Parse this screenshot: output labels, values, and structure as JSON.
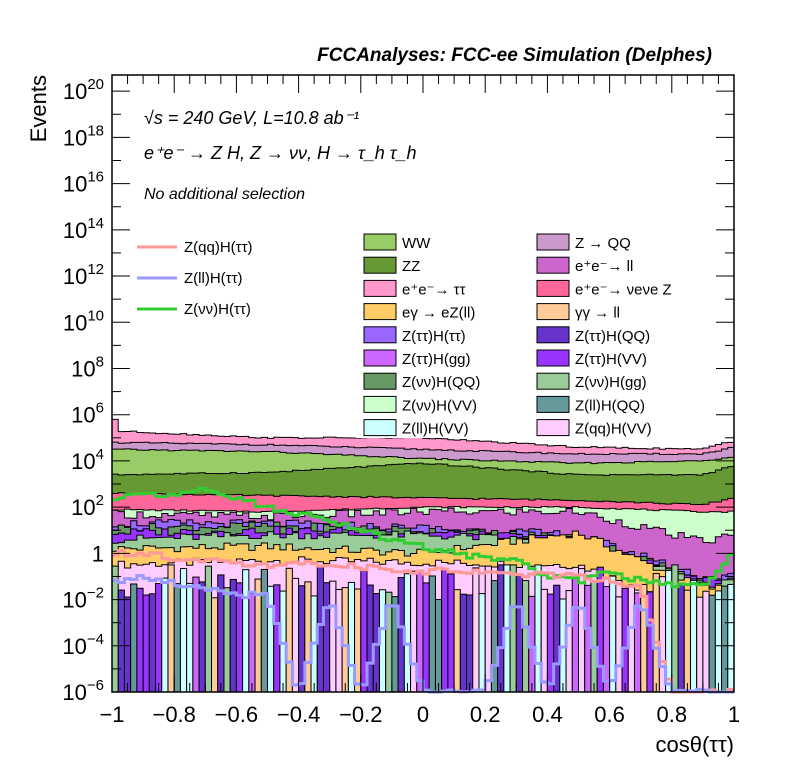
{
  "chart_data": {
    "type": "bar",
    "subtype": "stacked-histogram-with-overlay-lines",
    "title": "FCCAnalyses: FCC-ee Simulation (Delphes)",
    "annotations": [
      "√s = 240 GeV, L=10.8 ab⁻¹",
      "e⁺e⁻ → Z H, Z → νν, H → τ_h τ_h",
      "No additional selection"
    ],
    "xlabel": "cosθ(ττ)",
    "ylabel": "Events",
    "xlim": [
      -1,
      1
    ],
    "ylim_log10": [
      -6,
      20.7
    ],
    "yscale": "log",
    "x_ticks": [
      "−1",
      "−0.8",
      "−0.6",
      "−0.4",
      "−0.2",
      "0",
      "0.2",
      "0.4",
      "0.6",
      "0.8",
      "1"
    ],
    "x_tick_values": [
      -1,
      -0.8,
      -0.6,
      -0.4,
      -0.2,
      0,
      0.2,
      0.4,
      0.6,
      0.8,
      1
    ],
    "y_ticks": [
      {
        "base": "10",
        "exp": "20",
        "value": 20
      },
      {
        "base": "10",
        "exp": "18",
        "value": 18
      },
      {
        "base": "10",
        "exp": "16",
        "value": 16
      },
      {
        "base": "10",
        "exp": "14",
        "value": 14
      },
      {
        "base": "10",
        "exp": "12",
        "value": 12
      },
      {
        "base": "10",
        "exp": "10",
        "value": 10
      },
      {
        "base": "10",
        "exp": "8",
        "value": 8
      },
      {
        "base": "10",
        "exp": "6",
        "value": 6
      },
      {
        "base": "10",
        "exp": "4",
        "value": 4
      },
      {
        "base": "10",
        "exp": "2",
        "value": 2
      },
      {
        "base": "1",
        "exp": "",
        "value": 0
      },
      {
        "base": "10",
        "exp": "−2",
        "value": -2
      },
      {
        "base": "10",
        "exp": "−4",
        "value": -4
      },
      {
        "base": "10",
        "exp": "−6",
        "value": -6
      }
    ],
    "n_bins": 100,
    "stack_bands_log10_top": {
      "description": "approximate log10 of cumulative stack top at x = -1, -0.5, 0, 0.5, 0.9, 1 for each visible band (bottom-to-top order)",
      "x": [
        -1,
        -0.5,
        0,
        0.5,
        0.9,
        1
      ],
      "bands": [
        {
          "name": "Z(qq)H(VV)",
          "top": [
            -0.5,
            -0.3,
            -0.4,
            -0.5,
            -2.5,
            -2.5
          ]
        },
        {
          "name": "eγ → eZ(ll)",
          "top": [
            0.2,
            0.3,
            0.0,
            0.9,
            -1.5,
            -1.5
          ]
        },
        {
          "name": "Z(νν)H(gg)",
          "top": [
            0.6,
            0.8,
            0.8,
            0.5,
            -1.3,
            -1.3
          ]
        },
        {
          "name": "Z(ττ)H(VV)",
          "top": [
            0.9,
            1.0,
            0.9,
            0.6,
            -1.2,
            -1.2
          ]
        },
        {
          "name": "Z(νν)H(QQ)",
          "top": [
            1.1,
            1.2,
            1.0,
            0.7,
            -1.1,
            -1.1
          ]
        },
        {
          "name": "Z(ττ)H(ττ)",
          "top": [
            1.3,
            1.3,
            1.1,
            0.8,
            -1.0,
            -1.0
          ]
        },
        {
          "name": "e⁺e⁻ → ll",
          "top": [
            1.7,
            1.6,
            1.8,
            1.8,
            0.5,
            0.8
          ]
        },
        {
          "name": "Z(νν)H(VV)",
          "top": [
            1.9,
            1.8,
            2.0,
            2.0,
            1.8,
            1.8
          ]
        },
        {
          "name": "e⁺e⁻ → νeνe Z",
          "top": [
            2.6,
            2.5,
            2.4,
            2.3,
            2.1,
            2.4
          ]
        },
        {
          "name": "ZZ",
          "top": [
            3.4,
            3.5,
            3.9,
            3.4,
            3.4,
            3.8
          ]
        },
        {
          "name": "WW",
          "top": [
            4.5,
            4.4,
            4.1,
            3.9,
            4.0,
            4.2
          ]
        },
        {
          "name": "Z → QQ",
          "top": [
            4.8,
            4.7,
            4.5,
            4.3,
            4.3,
            4.6
          ]
        },
        {
          "name": "e⁺e⁻ → ττ",
          "top": [
            5.3,
            5.0,
            5.0,
            4.6,
            4.5,
            4.9
          ]
        }
      ]
    },
    "edge_spikes_log10": {
      "e⁺e⁻ → ττ at x=-1": 5.8,
      "e⁺e⁻ → ττ at x=1": 4.8
    },
    "overlay_lines_log10": {
      "x": [
        -1,
        -0.9,
        -0.8,
        -0.7,
        -0.6,
        -0.5,
        -0.4,
        -0.3,
        -0.2,
        -0.1,
        0,
        0.1,
        0.2,
        0.3,
        0.4,
        0.5,
        0.6,
        0.7,
        0.8,
        0.9,
        1
      ],
      "series": [
        {
          "name": "Z(νν)H(ττ)",
          "values": [
            2.4,
            2.5,
            2.6,
            2.8,
            2.4,
            2.0,
            1.7,
            1.4,
            1.0,
            0.6,
            0.3,
            0.0,
            -0.2,
            -0.3,
            -1.0,
            -1.2,
            -0.8,
            -1.2,
            -1.4,
            -1.4,
            0.0
          ]
        },
        {
          "name": "Z(qq)H(ττ)",
          "values": [
            0.0,
            0.0,
            -0.2,
            -0.3,
            -0.4,
            -0.5,
            -0.4,
            -0.5,
            -0.6,
            -0.7,
            -0.8,
            -0.7,
            -0.8,
            -0.9,
            -0.9,
            -1.0,
            -1.2,
            -1.5,
            -6,
            -6,
            -6
          ]
        },
        {
          "name": "Z(ll)H(ττ)",
          "values": [
            -1.2,
            -1.0,
            -1.3,
            -1.5,
            -1.8,
            -1.8,
            -6,
            -2.0,
            -6,
            -2.0,
            -6,
            -6,
            -6,
            -2.0,
            -6,
            -2.0,
            -6,
            -2.0,
            -6,
            -6,
            -6
          ]
        }
      ]
    },
    "legend": {
      "lines": [
        {
          "label": "Z(qq)H(ττ)",
          "color": "#ff9999"
        },
        {
          "label": "Z(ll)H(ττ)",
          "color": "#9999ff"
        },
        {
          "label": "Z(νν)H(ττ)",
          "color": "#33cc33"
        }
      ],
      "fills_col1": [
        {
          "label": "WW",
          "color": "#99cc66"
        },
        {
          "label": "ZZ",
          "color": "#669933"
        },
        {
          "label": "e⁺e⁻→ ττ",
          "color": "#ff99cc"
        },
        {
          "label": "eγ → eZ(ll)",
          "color": "#ffcc66"
        },
        {
          "label": "Z(ττ)H(ττ)",
          "color": "#9966ff"
        },
        {
          "label": "Z(ττ)H(gg)",
          "color": "#cc66ff"
        },
        {
          "label": "Z(νν)H(QQ)",
          "color": "#669966"
        },
        {
          "label": "Z(νν)H(VV)",
          "color": "#ccffcc"
        },
        {
          "label": "Z(ll)H(VV)",
          "color": "#ccffff"
        }
      ],
      "fills_col2": [
        {
          "label": "Z → QQ",
          "color": "#cc99cc"
        },
        {
          "label": "e⁺e⁻→ ll",
          "color": "#cc66cc"
        },
        {
          "label": "e⁺e⁻→ νeνe Z",
          "color": "#ff6699"
        },
        {
          "label": "γγ → ll",
          "color": "#ffcc99"
        },
        {
          "label": "Z(ττ)H(QQ)",
          "color": "#6633cc"
        },
        {
          "label": "Z(ττ)H(VV)",
          "color": "#9933ff"
        },
        {
          "label": "Z(νν)H(gg)",
          "color": "#99cc99"
        },
        {
          "label": "Z(ll)H(QQ)",
          "color": "#669999"
        },
        {
          "label": "Z(qq)H(VV)",
          "color": "#ffccff"
        }
      ],
      "placement": "upper-center"
    }
  }
}
